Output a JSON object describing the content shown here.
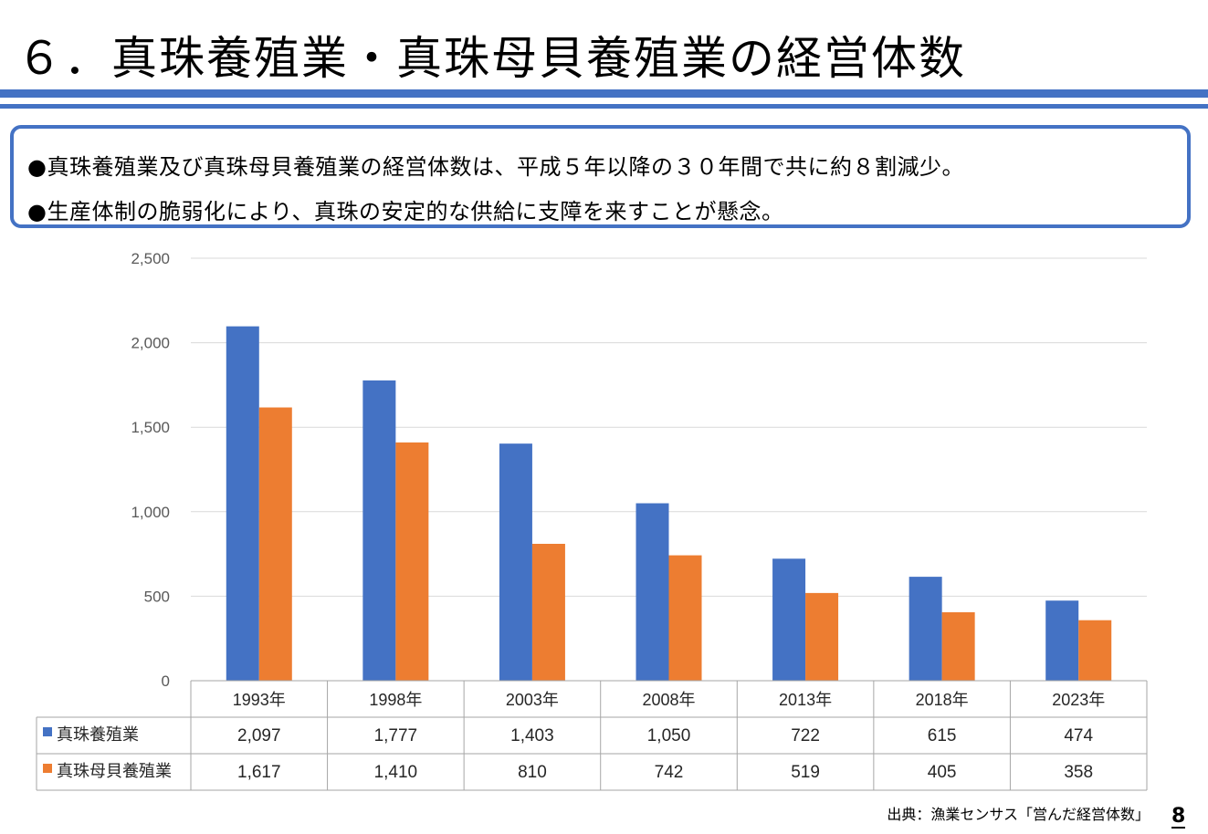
{
  "slide": {
    "title": "６．真珠養殖業・真珠母貝養殖業の経営体数",
    "bullets": [
      "●真珠養殖業及び真珠母貝養殖業の経営体数は、平成５年以降の３０年間で共に約８割減少。",
      "●生産体制の脆弱化により、真珠の安定的な供給に支障を来すことが懸念。"
    ],
    "source": "出典：漁業センサス「営んだ経営体数」",
    "page_number": "8"
  },
  "colors": {
    "accent": "#4472c4",
    "series1": "#4472c4",
    "series2": "#ed7d31"
  },
  "chart_data": {
    "type": "bar",
    "categories": [
      "1993年",
      "1998年",
      "2003年",
      "2008年",
      "2013年",
      "2018年",
      "2023年"
    ],
    "series": [
      {
        "name": "真珠養殖業",
        "values": [
          2097,
          1777,
          1403,
          1050,
          722,
          615,
          474
        ],
        "labels": [
          "2,097",
          "1,777",
          "1,403",
          "1,050",
          "722",
          "615",
          "474"
        ]
      },
      {
        "name": "真珠母貝養殖業",
        "values": [
          1617,
          1410,
          810,
          742,
          519,
          405,
          358
        ],
        "labels": [
          "1,617",
          "1,410",
          "810",
          "742",
          "519",
          "405",
          "358"
        ]
      }
    ],
    "y_ticks": [
      0,
      500,
      1000,
      1500,
      2000,
      2500
    ],
    "y_tick_labels": [
      "0",
      "500",
      "1,000",
      "1,500",
      "2,000",
      "2,500"
    ],
    "ylim": [
      0,
      2500
    ],
    "grid": true,
    "legend": "data-table"
  }
}
